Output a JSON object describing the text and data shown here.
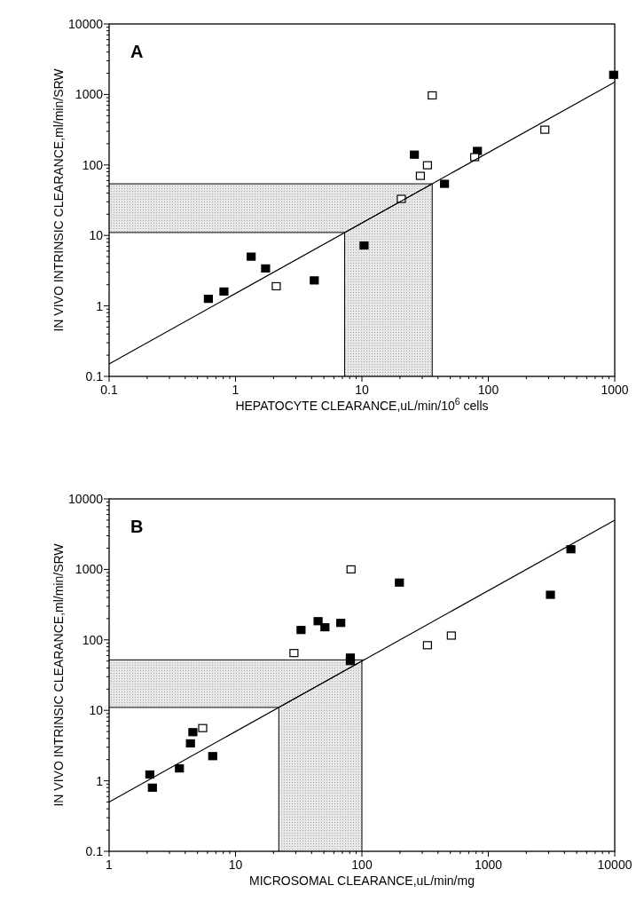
{
  "chart_data": [
    {
      "type": "scatter",
      "xlabel": "HEPATOCYTE CLEARANCE,uL/min/10$^{6}$ cells",
      "ylabel": "IN VIVO INTRINSIC CLEARANCE,ml/min/SRW",
      "annotations": [
        "A"
      ],
      "log": "xy",
      "grid": false,
      "xlim": [
        0.1,
        1000
      ],
      "xticks": [
        0.1,
        1,
        10,
        100,
        1000
      ],
      "ylim": [
        0.1,
        10000
      ],
      "yticks": [
        0.1,
        1,
        10,
        100,
        1000,
        10000
      ],
      "bands": [
        {
          "axis": "y",
          "from": 11,
          "to": 54,
          "color": "#cfcfcf"
        },
        {
          "axis": "x",
          "from": 7.3,
          "to": 36,
          "color": "#cfcfcf"
        }
      ],
      "series": [
        {
          "color": "#000000",
          "marker": "square",
          "x": [
            0.61,
            0.81,
            1.33,
            1.73,
            4.2,
            10.4,
            26,
            45,
            82,
            980
          ],
          "values": [
            1.26,
            1.6,
            5.0,
            3.4,
            2.3,
            7.2,
            140,
            54,
            158,
            1900
          ]
        },
        {
          "color": "#ffffff",
          "marker": "square",
          "x": [
            2.1,
            20.5,
            29,
            33,
            36,
            78,
            280
          ],
          "values": [
            1.9,
            33,
            70,
            99,
            970,
            129,
            316
          ]
        },
        {
          "type": "line",
          "color": "#000000",
          "x": [
            0.1,
            1000
          ],
          "values": [
            0.15,
            1500
          ]
        }
      ]
    },
    {
      "type": "scatter",
      "xlabel": "MICROSOMAL CLEARANCE,uL/min/mg",
      "ylabel": "IN VIVO INTRINSIC CLEARANCE,ml/min/SRW",
      "annotations": [
        "B"
      ],
      "log": "xy",
      "grid": false,
      "xlim": [
        1,
        10000
      ],
      "xticks": [
        1,
        10,
        100,
        1000,
        10000
      ],
      "ylim": [
        0.1,
        10000
      ],
      "yticks": [
        0.1,
        1,
        10,
        100,
        1000,
        10000
      ],
      "bands": [
        {
          "axis": "y",
          "from": 11,
          "to": 52,
          "color": "#cfcfcf"
        },
        {
          "axis": "x",
          "from": 22,
          "to": 100,
          "color": "#cfcfcf"
        }
      ],
      "series": [
        {
          "color": "#000000",
          "marker": "square",
          "x": [
            2.1,
            2.2,
            3.6,
            4.4,
            4.6,
            6.6,
            33,
            45,
            51,
            68,
            81,
            81,
            198,
            3100,
            4500
          ],
          "values": [
            1.23,
            0.8,
            1.5,
            3.4,
            4.9,
            2.24,
            138,
            184,
            151,
            174,
            56,
            50,
            650,
            436,
            1930
          ]
        },
        {
          "color": "#ffffff",
          "marker": "square",
          "x": [
            5.5,
            29,
            82,
            330,
            510
          ],
          "values": [
            5.6,
            65,
            1000,
            84,
            115
          ]
        },
        {
          "type": "line",
          "color": "#000000",
          "x": [
            1,
            10000
          ],
          "values": [
            0.5,
            5000
          ]
        }
      ]
    }
  ]
}
